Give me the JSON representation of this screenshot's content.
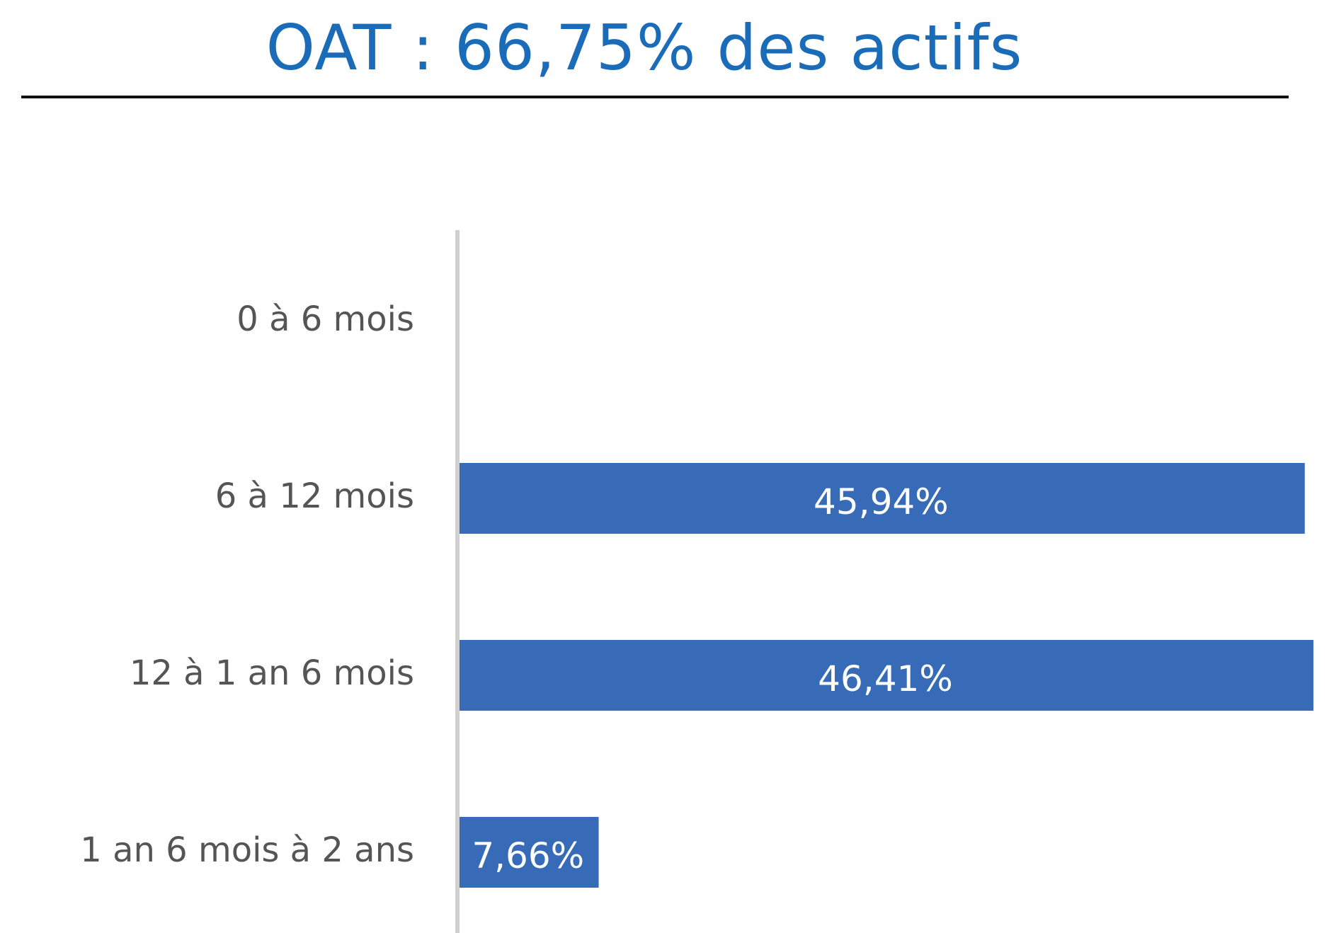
{
  "title": "OAT :  66,75% des actifs",
  "colors": {
    "title": "#1b6cb8",
    "bar": "#376ab7",
    "axis": "#d0d0d0",
    "category_text": "#555555",
    "value_text": "#ffffff"
  },
  "chart_data": {
    "type": "bar",
    "orientation": "horizontal",
    "title": "OAT :  66,75% des actifs",
    "categories": [
      "0 à 6 mois",
      "6 à 12 mois",
      "12 à 1 an 6 mois",
      "1 an 6 mois à 2 ans"
    ],
    "values": [
      0,
      45.94,
      46.41,
      7.66
    ],
    "value_labels": [
      "",
      "45,94%",
      "46,41%",
      "7,66%"
    ],
    "xlim": [
      0,
      46.41
    ],
    "xlabel": "",
    "ylabel": "",
    "grid": false,
    "legend": "none"
  }
}
